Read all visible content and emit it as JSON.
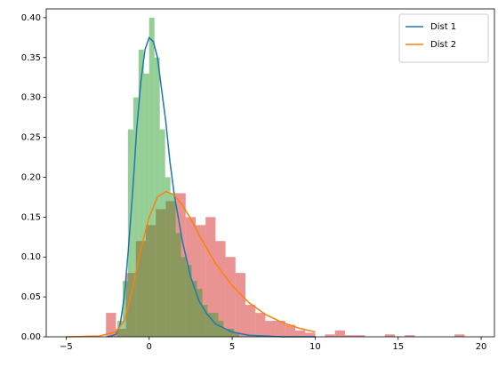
{
  "chart_data": {
    "type": "histogram",
    "xlim": [
      -6.2,
      20.8
    ],
    "ylim": [
      0,
      0.411
    ],
    "xticks": [
      {
        "value": -5,
        "label": "−5"
      },
      0,
      5,
      10,
      15,
      20
    ],
    "yticks": [
      {
        "value": 0,
        "label": "0.00"
      },
      {
        "value": 0.05,
        "label": "0.05"
      },
      {
        "value": 0.1,
        "label": "0.10"
      },
      {
        "value": 0.15,
        "label": "0.15"
      },
      {
        "value": 0.2,
        "label": "0.20"
      },
      {
        "value": 0.25,
        "label": "0.25"
      },
      {
        "value": 0.3,
        "label": "0.30"
      },
      {
        "value": 0.35,
        "label": "0.35"
      },
      {
        "value": 0.4,
        "label": "0.40"
      }
    ],
    "legend": "upper right",
    "histograms": [
      {
        "color": "#d62728",
        "opacity": 0.5,
        "bins": [
          -2.6,
          -2.0,
          -1.4,
          -0.8,
          -0.2,
          0.4,
          1.0,
          1.6,
          2.2,
          2.8,
          3.4,
          4.0,
          4.6,
          5.2,
          5.8,
          6.4,
          7.0,
          7.6,
          8.2,
          8.8,
          9.4,
          10.0,
          10.6,
          11.2,
          11.8,
          12.4,
          13.0,
          13.6,
          14.2,
          14.8,
          15.4,
          16.0,
          16.6,
          17.2,
          17.8,
          18.4,
          19.0
        ],
        "counts": [
          0.03,
          0.01,
          0.08,
          0.12,
          0.14,
          0.16,
          0.17,
          0.18,
          0.15,
          0.14,
          0.15,
          0.12,
          0.1,
          0.08,
          0.04,
          0.03,
          0.02,
          0.02,
          0.015,
          0.008,
          0.005,
          0,
          0.003,
          0.008,
          0.002,
          0.002,
          0,
          0,
          0.003,
          0,
          0.002,
          0,
          0,
          0,
          0,
          0.003
        ]
      },
      {
        "color": "#2ca02c",
        "opacity": 0.5,
        "bins": [
          -1.92,
          -1.6,
          -1.28,
          -0.96,
          -0.64,
          -0.32,
          0.0,
          0.32,
          0.64,
          0.96,
          1.28,
          1.6,
          1.92,
          2.24,
          2.56,
          2.88,
          3.2,
          3.52,
          3.84,
          4.16,
          4.48,
          4.8,
          5.12,
          5.44
        ],
        "counts": [
          0.02,
          0.07,
          0.26,
          0.3,
          0.36,
          0.33,
          0.4,
          0.35,
          0.26,
          0.2,
          0.18,
          0.13,
          0.1,
          0.09,
          0.07,
          0.06,
          0.04,
          0.03,
          0.03,
          0.02,
          0.01,
          0.01,
          0.005
        ]
      }
    ],
    "series": [
      {
        "name": "Dist 1",
        "color": "#1f77b4",
        "x": [
          -2.5,
          -2,
          -1.75,
          -1.5,
          -1.25,
          -1,
          -0.75,
          -0.5,
          -0.25,
          0,
          0.25,
          0.5,
          0.75,
          1,
          1.25,
          1.5,
          2,
          2.5,
          3,
          3.5,
          4,
          5,
          6,
          8,
          10
        ],
        "values": [
          0,
          0.003,
          0.015,
          0.05,
          0.11,
          0.18,
          0.26,
          0.32,
          0.36,
          0.375,
          0.37,
          0.35,
          0.31,
          0.27,
          0.22,
          0.18,
          0.12,
          0.075,
          0.045,
          0.028,
          0.016,
          0.006,
          0.002,
          0,
          0
        ]
      },
      {
        "name": "Dist 2",
        "color": "#ff7f0e",
        "x": [
          -5,
          -3,
          -2,
          -1.5,
          -1,
          -0.5,
          0,
          0.5,
          1,
          1.5,
          2,
          2.5,
          3,
          3.5,
          4,
          5,
          6,
          7,
          8,
          9,
          10
        ],
        "values": [
          0,
          0.001,
          0.006,
          0.02,
          0.06,
          0.11,
          0.15,
          0.175,
          0.182,
          0.178,
          0.165,
          0.148,
          0.128,
          0.11,
          0.092,
          0.064,
          0.043,
          0.028,
          0.018,
          0.011,
          0.006
        ]
      }
    ]
  }
}
